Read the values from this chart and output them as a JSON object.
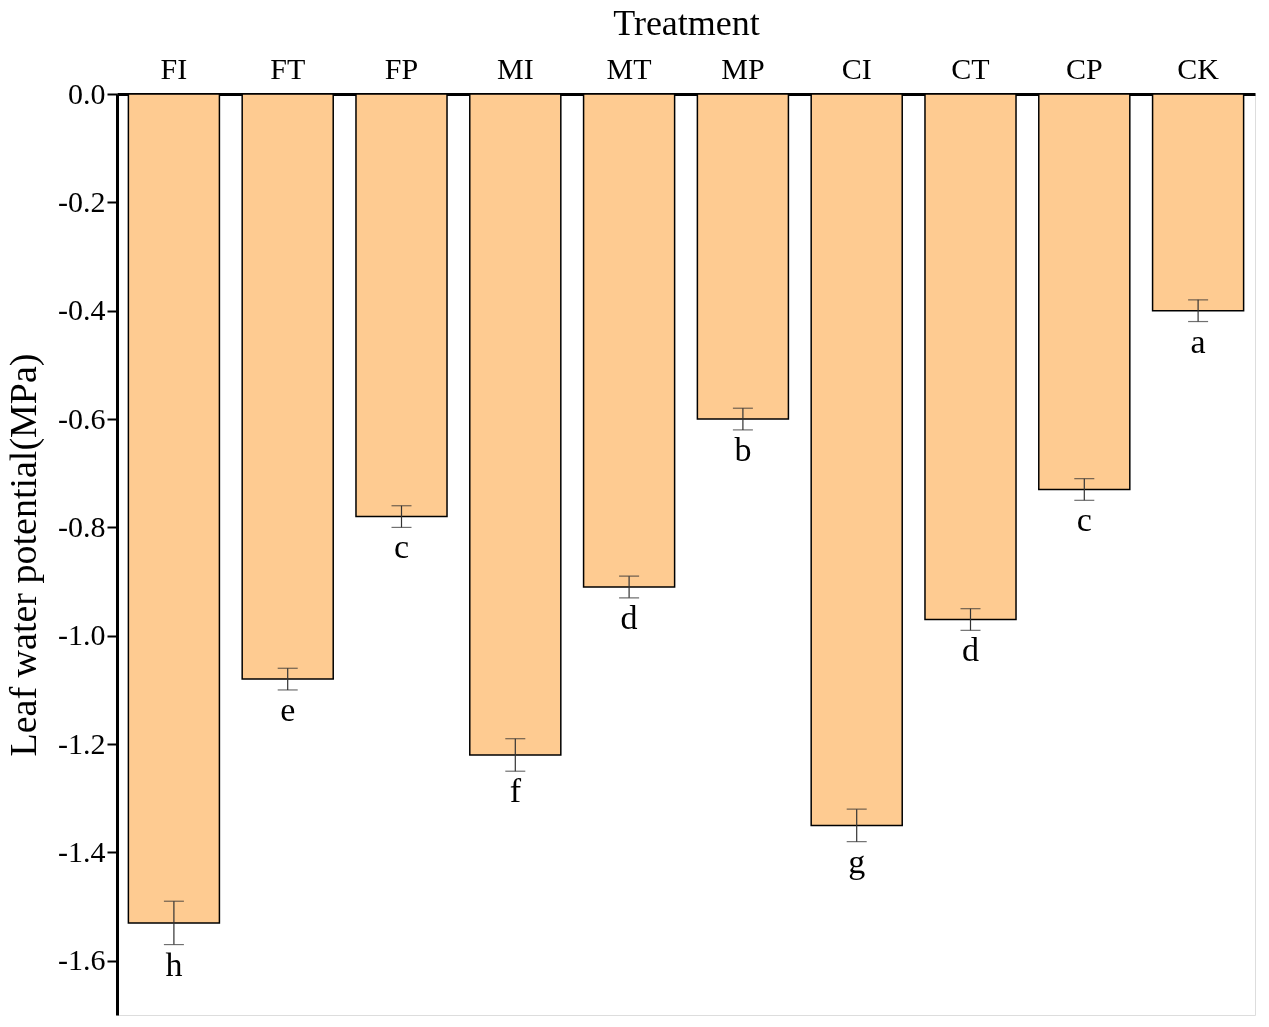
{
  "chart_data": {
    "type": "bar",
    "xlabel": "Treatment",
    "ylabel": "Leaf water potential(MPa)",
    "categories": [
      "FI",
      "FT",
      "FP",
      "MI",
      "MT",
      "MP",
      "CI",
      "CT",
      "CP",
      "CK"
    ],
    "series": [
      {
        "color": "#fecb91",
        "values": [
          -1.53,
          -1.08,
          -0.78,
          -1.22,
          -0.91,
          -0.6,
          -1.35,
          -0.97,
          -0.73,
          -0.4
        ],
        "errors": [
          0.04,
          0.02,
          0.02,
          0.03,
          0.02,
          0.02,
          0.03,
          0.02,
          0.02,
          0.02
        ]
      }
    ],
    "ylim": [
      -1.7,
      0.0
    ],
    "yticks": [
      {
        "value": 0,
        "label": "0.0"
      },
      -0.2,
      -0.4,
      -0.6,
      -0.8,
      {
        "value": -1,
        "label": "-1.0"
      },
      -1.2,
      -1.4,
      -1.6
    ],
    "grid": false,
    "annotations": [
      {
        "text": "h",
        "x": "FI",
        "y": -1.57
      },
      {
        "text": "e",
        "x": "FT",
        "y": -1.1
      },
      {
        "text": "c",
        "x": "FP",
        "y": -0.8
      },
      {
        "text": "f",
        "x": "MI",
        "y": -1.25
      },
      {
        "text": "d",
        "x": "MT",
        "y": -0.93
      },
      {
        "text": "b",
        "x": "MP",
        "y": -0.62
      },
      {
        "text": "g",
        "x": "CI",
        "y": -1.38
      },
      {
        "text": "d",
        "x": "CT",
        "y": -0.99
      },
      {
        "text": "c",
        "x": "CP",
        "y": -0.75
      },
      {
        "text": "a",
        "x": "CK",
        "y": -0.42
      }
    ]
  }
}
